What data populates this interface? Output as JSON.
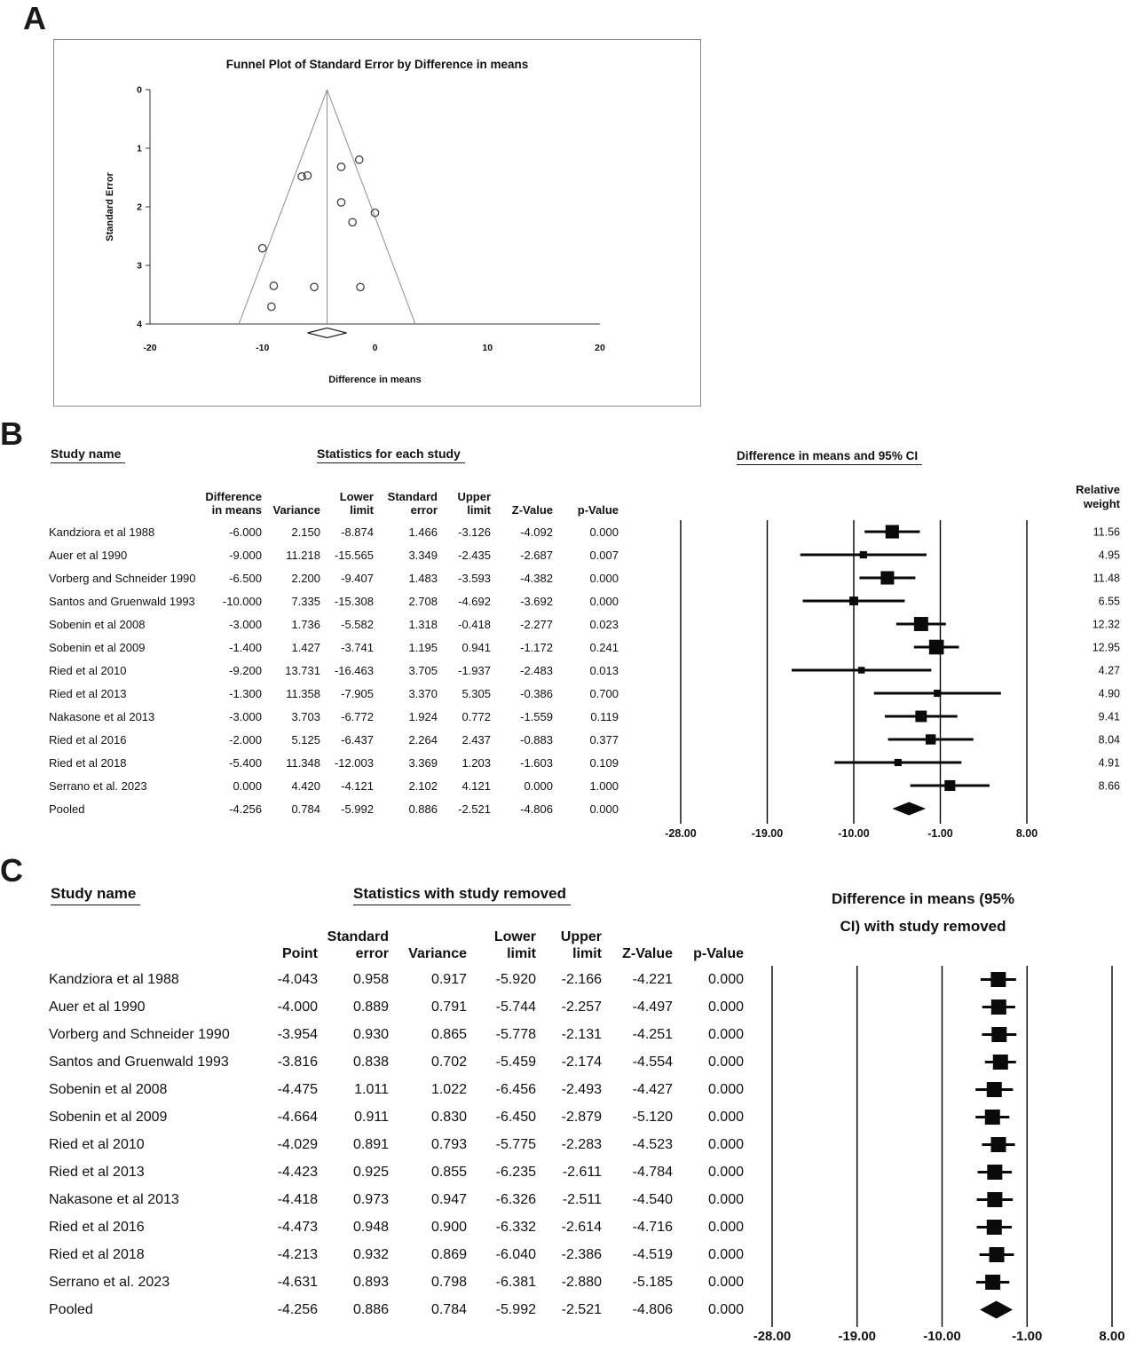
{
  "panel_a": {
    "label": "A"
  },
  "panel_b": {
    "label": "B",
    "headers": {
      "study": "Study name",
      "stats_group": "Statistics for each study",
      "ci_group": "Difference in means and 95% CI",
      "weight_line1": "Relative",
      "weight_line2": "weight",
      "columns": [
        {
          "l1": "Difference",
          "l2": "in means"
        },
        {
          "l1": "",
          "l2": "Variance"
        },
        {
          "l1": "Lower",
          "l2": "limit"
        },
        {
          "l1": "Standard",
          "l2": "error"
        },
        {
          "l1": "Upper",
          "l2": "limit"
        },
        {
          "l1": "",
          "l2": "Z-Value"
        },
        {
          "l1": "",
          "l2": "p-Value"
        }
      ]
    }
  },
  "panel_c": {
    "label": "C",
    "headers": {
      "study": "Study name",
      "stats_group": "Statistics with study removed",
      "ci_group_line1": "Difference in means (95%",
      "ci_group_line2": "CI) with study removed",
      "columns": [
        {
          "l1": "",
          "l2": "Point"
        },
        {
          "l1": "Standard",
          "l2": "error"
        },
        {
          "l1": "",
          "l2": "Variance"
        },
        {
          "l1": "Lower",
          "l2": "limit"
        },
        {
          "l1": "Upper",
          "l2": "limit"
        },
        {
          "l1": "",
          "l2": "Z-Value"
        },
        {
          "l1": "",
          "l2": "p-Value"
        }
      ]
    }
  },
  "chart_data": [
    {
      "id": "funnel_plot",
      "type": "scatter",
      "title": "Funnel Plot of Standard Error by Difference in means",
      "xlabel": "Difference in means",
      "ylabel": "Standard Error",
      "xlim": [
        -20,
        20
      ],
      "ylim": [
        0,
        4
      ],
      "x_ticks": [
        -20,
        -10,
        0,
        10,
        20
      ],
      "y_ticks": [
        0,
        1,
        2,
        3,
        4
      ],
      "y_axis_inverted": true,
      "points": [
        {
          "x": -6.0,
          "y": 1.466
        },
        {
          "x": -9.0,
          "y": 3.349
        },
        {
          "x": -6.5,
          "y": 1.483
        },
        {
          "x": -10.0,
          "y": 2.708
        },
        {
          "x": -3.0,
          "y": 1.318
        },
        {
          "x": -1.4,
          "y": 1.195
        },
        {
          "x": -9.2,
          "y": 3.705
        },
        {
          "x": -1.3,
          "y": 3.37
        },
        {
          "x": -3.0,
          "y": 1.924
        },
        {
          "x": -2.0,
          "y": 2.264
        },
        {
          "x": -5.4,
          "y": 3.369
        },
        {
          "x": 0.0,
          "y": 2.102
        }
      ],
      "funnel": {
        "center": -4.256,
        "se_max": 4,
        "z": 1.96
      },
      "pooled_diamond": {
        "point": -4.256,
        "lower": -5.992,
        "upper": -2.521
      }
    },
    {
      "id": "forest_plot_b",
      "type": "forest",
      "xlim": [
        -28,
        8
      ],
      "axis_ticks": [
        -28,
        -19,
        -10,
        -1,
        8
      ],
      "studies": [
        {
          "name": "Kandziora et al 1988",
          "diff": -6.0,
          "variance": 2.15,
          "lower": -8.874,
          "se": 1.466,
          "upper": -3.126,
          "z": -4.092,
          "p": 0.0,
          "weight": 11.56
        },
        {
          "name": "Auer et al 1990",
          "diff": -9.0,
          "variance": 11.218,
          "lower": -15.565,
          "se": 3.349,
          "upper": -2.435,
          "z": -2.687,
          "p": 0.007,
          "weight": 4.95
        },
        {
          "name": "Vorberg and Schneider 1990",
          "diff": -6.5,
          "variance": 2.2,
          "lower": -9.407,
          "se": 1.483,
          "upper": -3.593,
          "z": -4.382,
          "p": 0.0,
          "weight": 11.48
        },
        {
          "name": "Santos and Gruenwald 1993",
          "diff": -10.0,
          "variance": 7.335,
          "lower": -15.308,
          "se": 2.708,
          "upper": -4.692,
          "z": -3.692,
          "p": 0.0,
          "weight": 6.55
        },
        {
          "name": "Sobenin et al 2008",
          "diff": -3.0,
          "variance": 1.736,
          "lower": -5.582,
          "se": 1.318,
          "upper": -0.418,
          "z": -2.277,
          "p": 0.023,
          "weight": 12.32
        },
        {
          "name": "Sobenin et al 2009",
          "diff": -1.4,
          "variance": 1.427,
          "lower": -3.741,
          "se": 1.195,
          "upper": 0.941,
          "z": -1.172,
          "p": 0.241,
          "weight": 12.95
        },
        {
          "name": "Ried et al 2010",
          "diff": -9.2,
          "variance": 13.731,
          "lower": -16.463,
          "se": 3.705,
          "upper": -1.937,
          "z": -2.483,
          "p": 0.013,
          "weight": 4.27
        },
        {
          "name": "Ried et al 2013",
          "diff": -1.3,
          "variance": 11.358,
          "lower": -7.905,
          "se": 3.37,
          "upper": 5.305,
          "z": -0.386,
          "p": 0.7,
          "weight": 4.9
        },
        {
          "name": "Nakasone et al 2013",
          "diff": -3.0,
          "variance": 3.703,
          "lower": -6.772,
          "se": 1.924,
          "upper": 0.772,
          "z": -1.559,
          "p": 0.119,
          "weight": 9.41
        },
        {
          "name": "Ried et al 2016",
          "diff": -2.0,
          "variance": 5.125,
          "lower": -6.437,
          "se": 2.264,
          "upper": 2.437,
          "z": -0.883,
          "p": 0.377,
          "weight": 8.04
        },
        {
          "name": "Ried et al 2018",
          "diff": -5.4,
          "variance": 11.348,
          "lower": -12.003,
          "se": 3.369,
          "upper": 1.203,
          "z": -1.603,
          "p": 0.109,
          "weight": 4.91
        },
        {
          "name": "Serrano et al. 2023",
          "diff": 0.0,
          "variance": 4.42,
          "lower": -4.121,
          "se": 2.102,
          "upper": 4.121,
          "z": 0.0,
          "p": 1.0,
          "weight": 8.66
        }
      ],
      "pooled": {
        "name": "Pooled",
        "diff": -4.256,
        "variance": 0.784,
        "lower": -5.992,
        "se": 0.886,
        "upper": -2.521,
        "z": -4.806,
        "p": 0.0
      }
    },
    {
      "id": "forest_plot_c",
      "type": "forest",
      "xlim": [
        -28,
        8
      ],
      "axis_ticks": [
        -28,
        -19,
        -10,
        -1,
        8
      ],
      "studies": [
        {
          "name": "Kandziora et al 1988",
          "point": -4.043,
          "se": 0.958,
          "variance": 0.917,
          "lower": -5.92,
          "upper": -2.166,
          "z": -4.221,
          "p": 0.0
        },
        {
          "name": "Auer et al 1990",
          "point": -4.0,
          "se": 0.889,
          "variance": 0.791,
          "lower": -5.744,
          "upper": -2.257,
          "z": -4.497,
          "p": 0.0
        },
        {
          "name": "Vorberg and Schneider 1990",
          "point": -3.954,
          "se": 0.93,
          "variance": 0.865,
          "lower": -5.778,
          "upper": -2.131,
          "z": -4.251,
          "p": 0.0
        },
        {
          "name": "Santos and Gruenwald 1993",
          "point": -3.816,
          "se": 0.838,
          "variance": 0.702,
          "lower": -5.459,
          "upper": -2.174,
          "z": -4.554,
          "p": 0.0
        },
        {
          "name": "Sobenin et al 2008",
          "point": -4.475,
          "se": 1.011,
          "variance": 1.022,
          "lower": -6.456,
          "upper": -2.493,
          "z": -4.427,
          "p": 0.0
        },
        {
          "name": "Sobenin et al 2009",
          "point": -4.664,
          "se": 0.911,
          "variance": 0.83,
          "lower": -6.45,
          "upper": -2.879,
          "z": -5.12,
          "p": 0.0
        },
        {
          "name": "Ried et al 2010",
          "point": -4.029,
          "se": 0.891,
          "variance": 0.793,
          "lower": -5.775,
          "upper": -2.283,
          "z": -4.523,
          "p": 0.0
        },
        {
          "name": "Ried et al 2013",
          "point": -4.423,
          "se": 0.925,
          "variance": 0.855,
          "lower": -6.235,
          "upper": -2.611,
          "z": -4.784,
          "p": 0.0
        },
        {
          "name": "Nakasone et al 2013",
          "point": -4.418,
          "se": 0.973,
          "variance": 0.947,
          "lower": -6.326,
          "upper": -2.511,
          "z": -4.54,
          "p": 0.0
        },
        {
          "name": "Ried et al 2016",
          "point": -4.473,
          "se": 0.948,
          "variance": 0.9,
          "lower": -6.332,
          "upper": -2.614,
          "z": -4.716,
          "p": 0.0
        },
        {
          "name": "Ried et al 2018",
          "point": -4.213,
          "se": 0.932,
          "variance": 0.869,
          "lower": -6.04,
          "upper": -2.386,
          "z": -4.519,
          "p": 0.0
        },
        {
          "name": "Serrano et al. 2023",
          "point": -4.631,
          "se": 0.893,
          "variance": 0.798,
          "lower": -6.381,
          "upper": -2.88,
          "z": -5.185,
          "p": 0.0
        }
      ],
      "pooled": {
        "name": "Pooled",
        "point": -4.256,
        "se": 0.886,
        "variance": 0.784,
        "lower": -5.992,
        "upper": -2.521,
        "z": -4.806,
        "p": 0.0
      }
    }
  ]
}
